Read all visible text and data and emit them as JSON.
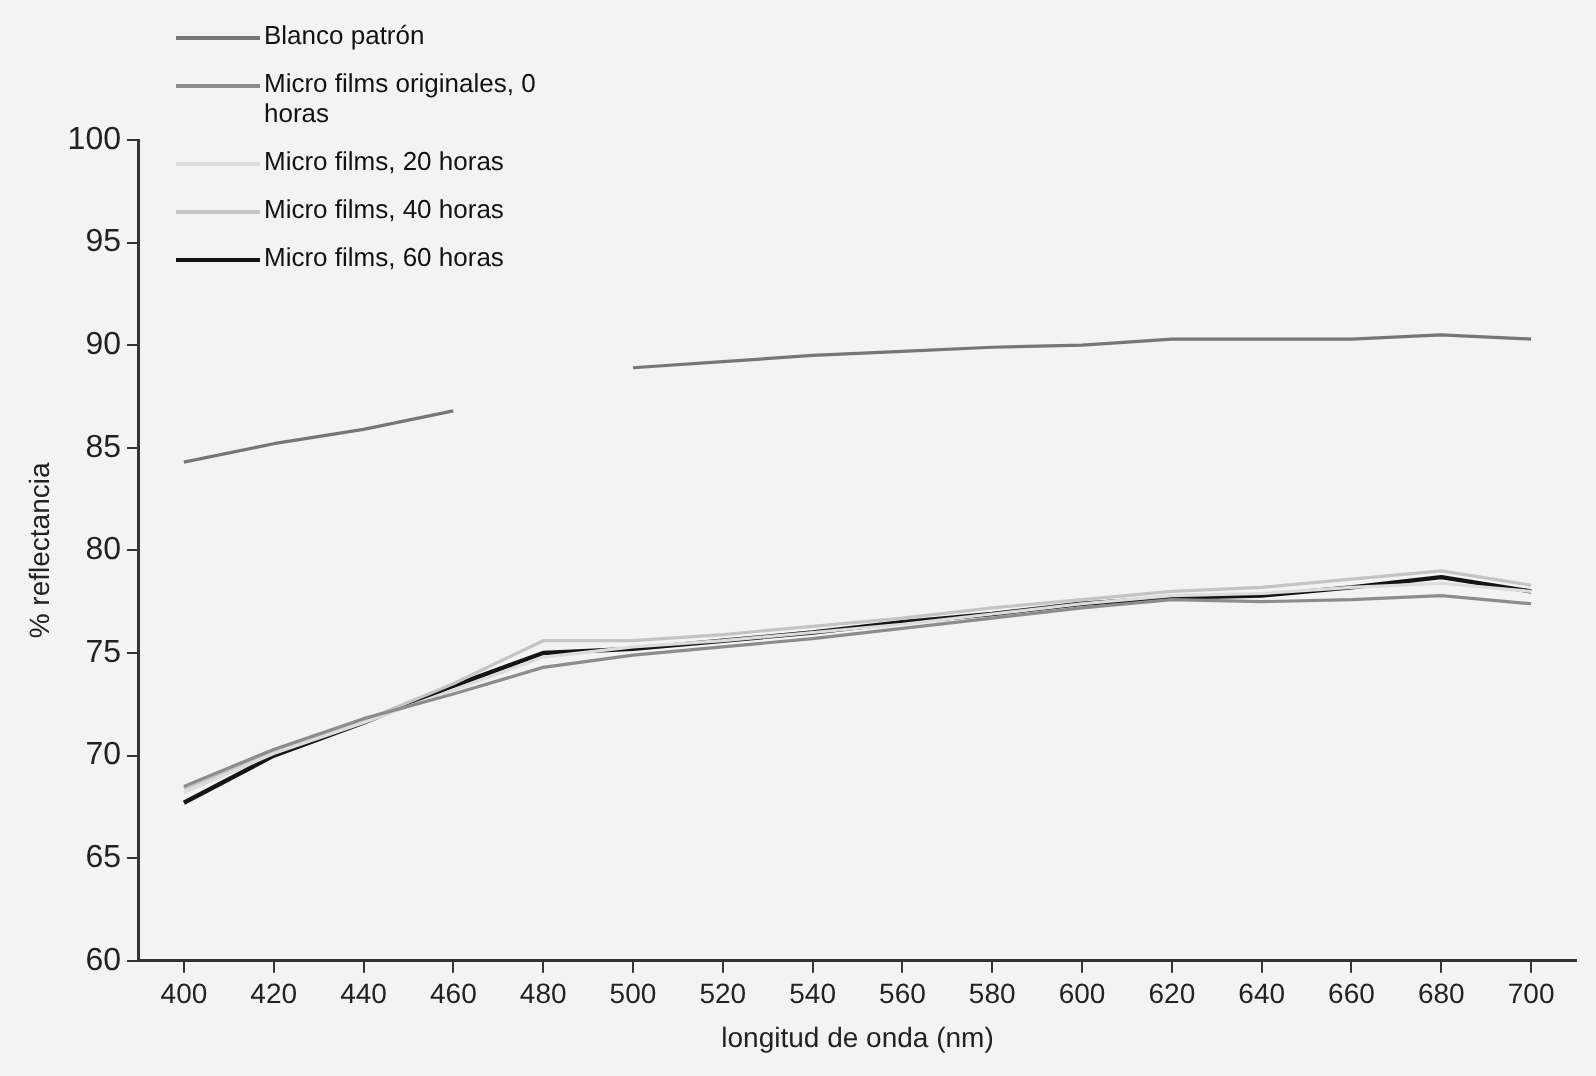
{
  "chart_data": {
    "type": "line",
    "xlabel": "longitud de onda (nm)",
    "ylabel": "% reflectancia",
    "x": [
      400,
      420,
      440,
      460,
      480,
      500,
      520,
      540,
      560,
      580,
      600,
      620,
      640,
      660,
      680,
      700
    ],
    "series": [
      {
        "name": "Blanco patrón",
        "color": "#767676",
        "values": [
          84.3,
          85.2,
          85.9,
          86.8,
          null,
          88.9,
          89.2,
          89.5,
          89.7,
          89.9,
          90.0,
          90.3,
          90.3,
          90.3,
          90.5,
          90.3
        ]
      },
      {
        "name": "Micro films originales, 0 horas",
        "color": "#8c8c8c",
        "values": [
          68.5,
          70.3,
          71.8,
          73.0,
          74.3,
          74.9,
          75.3,
          75.7,
          76.2,
          76.7,
          77.2,
          77.6,
          77.5,
          77.6,
          77.8,
          77.4
        ]
      },
      {
        "name": "Micro films, 20 horas",
        "color": "#dcdcdc",
        "values": [
          68.2,
          70.1,
          71.6,
          73.2,
          74.8,
          75.3,
          75.6,
          76.0,
          76.4,
          76.9,
          77.4,
          77.8,
          77.9,
          78.2,
          78.4,
          78.0
        ]
      },
      {
        "name": "Micro films, 40 horas",
        "color": "#c4c4c4",
        "values": [
          68.4,
          70.2,
          71.7,
          73.5,
          75.6,
          75.6,
          75.9,
          76.3,
          76.7,
          77.2,
          77.6,
          78.0,
          78.2,
          78.6,
          79.0,
          78.3
        ]
      },
      {
        "name": "Micro films, 60 horas",
        "color": "#141414",
        "values": [
          67.7,
          70.0,
          71.6,
          73.4,
          75.0,
          75.2,
          75.6,
          76.0,
          76.5,
          76.9,
          77.4,
          77.7,
          77.8,
          78.2,
          78.7,
          78.0
        ]
      }
    ],
    "xlim": [
      390,
      710
    ],
    "xticks": [
      400,
      420,
      440,
      460,
      480,
      500,
      520,
      540,
      560,
      580,
      600,
      620,
      640,
      660,
      680,
      700
    ],
    "ylim": [
      60,
      100
    ],
    "yticks": [
      60,
      65,
      70,
      75,
      80,
      85,
      90,
      95,
      100
    ],
    "grid": false,
    "legend": "top left",
    "marker": "none",
    "line_style": "solid"
  }
}
